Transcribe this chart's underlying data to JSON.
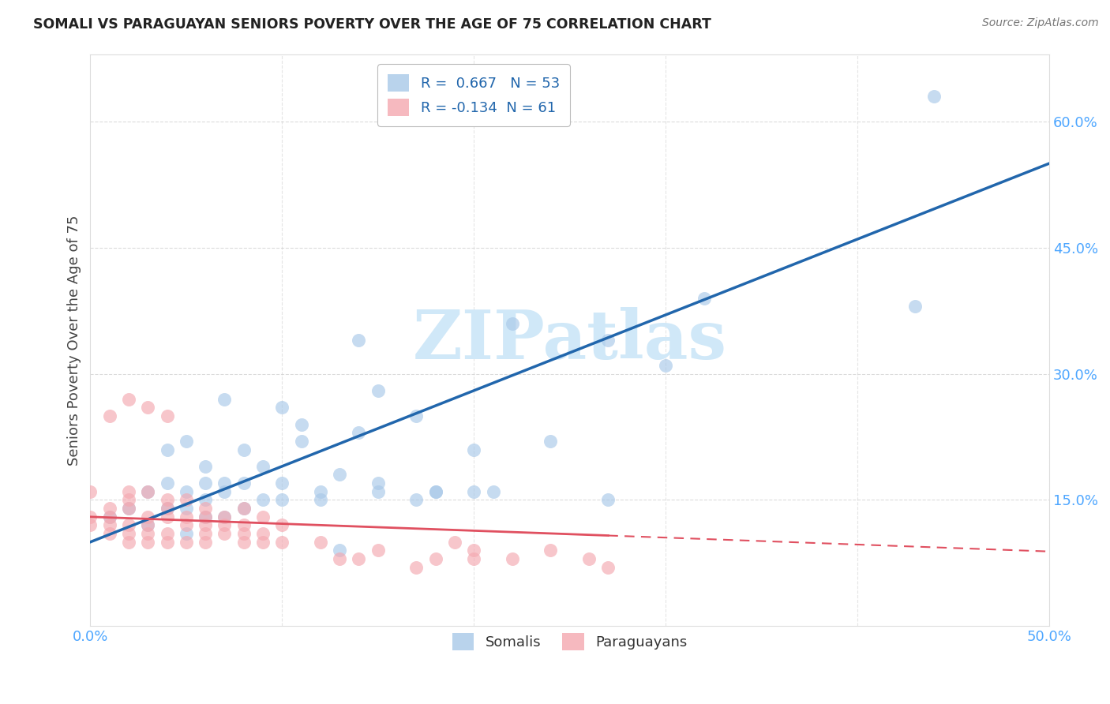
{
  "title": "SOMALI VS PARAGUAYAN SENIORS POVERTY OVER THE AGE OF 75 CORRELATION CHART",
  "source": "Source: ZipAtlas.com",
  "tick_color": "#4da6ff",
  "ylabel": "Seniors Poverty Over the Age of 75",
  "xlim": [
    0.0,
    0.5
  ],
  "ylim": [
    0.0,
    0.68
  ],
  "somali_R": 0.667,
  "somali_N": 53,
  "paraguayan_R": -0.134,
  "paraguayan_N": 61,
  "somali_color": "#a8c8e8",
  "paraguayan_color": "#f4a8b0",
  "trendline_somali_color": "#2166ac",
  "trendline_paraguayan_color": "#e05060",
  "watermark": "ZIPatlas",
  "watermark_color": "#d0e8f8",
  "grid_color": "#cccccc",
  "background_color": "#ffffff",
  "somali_x": [
    0.01,
    0.02,
    0.03,
    0.03,
    0.04,
    0.04,
    0.04,
    0.05,
    0.05,
    0.05,
    0.05,
    0.06,
    0.06,
    0.06,
    0.06,
    0.07,
    0.07,
    0.07,
    0.07,
    0.08,
    0.08,
    0.08,
    0.09,
    0.09,
    0.1,
    0.1,
    0.1,
    0.11,
    0.11,
    0.12,
    0.12,
    0.13,
    0.13,
    0.14,
    0.14,
    0.15,
    0.15,
    0.15,
    0.17,
    0.17,
    0.18,
    0.18,
    0.2,
    0.2,
    0.21,
    0.22,
    0.24,
    0.27,
    0.27,
    0.3,
    0.32,
    0.43,
    0.44
  ],
  "somali_y": [
    0.13,
    0.14,
    0.12,
    0.16,
    0.14,
    0.17,
    0.21,
    0.11,
    0.14,
    0.16,
    0.22,
    0.13,
    0.15,
    0.17,
    0.19,
    0.13,
    0.16,
    0.17,
    0.27,
    0.14,
    0.17,
    0.21,
    0.15,
    0.19,
    0.15,
    0.17,
    0.26,
    0.22,
    0.24,
    0.15,
    0.16,
    0.09,
    0.18,
    0.23,
    0.34,
    0.16,
    0.17,
    0.28,
    0.15,
    0.25,
    0.16,
    0.16,
    0.16,
    0.21,
    0.16,
    0.36,
    0.22,
    0.15,
    0.34,
    0.31,
    0.39,
    0.38,
    0.63
  ],
  "paraguayan_x": [
    0.0,
    0.0,
    0.0,
    0.01,
    0.01,
    0.01,
    0.01,
    0.01,
    0.02,
    0.02,
    0.02,
    0.02,
    0.02,
    0.02,
    0.02,
    0.03,
    0.03,
    0.03,
    0.03,
    0.03,
    0.03,
    0.04,
    0.04,
    0.04,
    0.04,
    0.04,
    0.04,
    0.05,
    0.05,
    0.05,
    0.05,
    0.06,
    0.06,
    0.06,
    0.06,
    0.06,
    0.07,
    0.07,
    0.07,
    0.08,
    0.08,
    0.08,
    0.08,
    0.09,
    0.09,
    0.09,
    0.1,
    0.1,
    0.12,
    0.13,
    0.14,
    0.15,
    0.17,
    0.18,
    0.19,
    0.2,
    0.2,
    0.22,
    0.24,
    0.26,
    0.27
  ],
  "paraguayan_y": [
    0.12,
    0.13,
    0.16,
    0.11,
    0.12,
    0.13,
    0.14,
    0.25,
    0.1,
    0.11,
    0.12,
    0.14,
    0.15,
    0.16,
    0.27,
    0.1,
    0.11,
    0.12,
    0.13,
    0.16,
    0.26,
    0.1,
    0.11,
    0.13,
    0.14,
    0.15,
    0.25,
    0.1,
    0.12,
    0.13,
    0.15,
    0.1,
    0.11,
    0.12,
    0.13,
    0.14,
    0.11,
    0.12,
    0.13,
    0.1,
    0.11,
    0.12,
    0.14,
    0.1,
    0.11,
    0.13,
    0.1,
    0.12,
    0.1,
    0.08,
    0.08,
    0.09,
    0.07,
    0.08,
    0.1,
    0.09,
    0.08,
    0.08,
    0.09,
    0.08,
    0.07
  ]
}
